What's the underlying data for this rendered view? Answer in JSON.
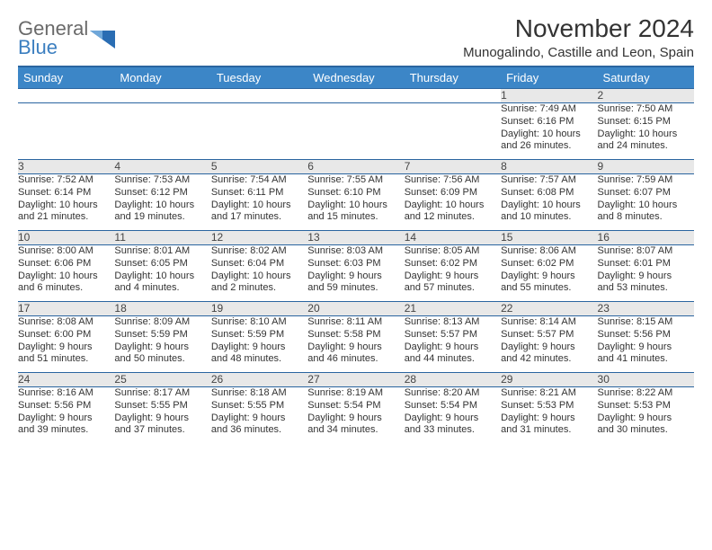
{
  "brand": {
    "word1": "General",
    "word2": "Blue",
    "triangle_color": "#2a6db3"
  },
  "header": {
    "title": "November 2024",
    "location": "Munogalindo, Castille and Leon, Spain"
  },
  "theme": {
    "header_bg": "#3c86c7",
    "header_border": "#2a65a0",
    "daynum_bg": "#e8e8e8",
    "row_rule": "#2a65a0"
  },
  "weekdays": [
    "Sunday",
    "Monday",
    "Tuesday",
    "Wednesday",
    "Thursday",
    "Friday",
    "Saturday"
  ],
  "weeks": [
    {
      "nums": [
        "",
        "",
        "",
        "",
        "",
        "1",
        "2"
      ],
      "cells": [
        null,
        null,
        null,
        null,
        null,
        {
          "sunrise": "Sunrise: 7:49 AM",
          "sunset": "Sunset: 6:16 PM",
          "day1": "Daylight: 10 hours",
          "day2": "and 26 minutes."
        },
        {
          "sunrise": "Sunrise: 7:50 AM",
          "sunset": "Sunset: 6:15 PM",
          "day1": "Daylight: 10 hours",
          "day2": "and 24 minutes."
        }
      ]
    },
    {
      "nums": [
        "3",
        "4",
        "5",
        "6",
        "7",
        "8",
        "9"
      ],
      "cells": [
        {
          "sunrise": "Sunrise: 7:52 AM",
          "sunset": "Sunset: 6:14 PM",
          "day1": "Daylight: 10 hours",
          "day2": "and 21 minutes."
        },
        {
          "sunrise": "Sunrise: 7:53 AM",
          "sunset": "Sunset: 6:12 PM",
          "day1": "Daylight: 10 hours",
          "day2": "and 19 minutes."
        },
        {
          "sunrise": "Sunrise: 7:54 AM",
          "sunset": "Sunset: 6:11 PM",
          "day1": "Daylight: 10 hours",
          "day2": "and 17 minutes."
        },
        {
          "sunrise": "Sunrise: 7:55 AM",
          "sunset": "Sunset: 6:10 PM",
          "day1": "Daylight: 10 hours",
          "day2": "and 15 minutes."
        },
        {
          "sunrise": "Sunrise: 7:56 AM",
          "sunset": "Sunset: 6:09 PM",
          "day1": "Daylight: 10 hours",
          "day2": "and 12 minutes."
        },
        {
          "sunrise": "Sunrise: 7:57 AM",
          "sunset": "Sunset: 6:08 PM",
          "day1": "Daylight: 10 hours",
          "day2": "and 10 minutes."
        },
        {
          "sunrise": "Sunrise: 7:59 AM",
          "sunset": "Sunset: 6:07 PM",
          "day1": "Daylight: 10 hours",
          "day2": "and 8 minutes."
        }
      ]
    },
    {
      "nums": [
        "10",
        "11",
        "12",
        "13",
        "14",
        "15",
        "16"
      ],
      "cells": [
        {
          "sunrise": "Sunrise: 8:00 AM",
          "sunset": "Sunset: 6:06 PM",
          "day1": "Daylight: 10 hours",
          "day2": "and 6 minutes."
        },
        {
          "sunrise": "Sunrise: 8:01 AM",
          "sunset": "Sunset: 6:05 PM",
          "day1": "Daylight: 10 hours",
          "day2": "and 4 minutes."
        },
        {
          "sunrise": "Sunrise: 8:02 AM",
          "sunset": "Sunset: 6:04 PM",
          "day1": "Daylight: 10 hours",
          "day2": "and 2 minutes."
        },
        {
          "sunrise": "Sunrise: 8:03 AM",
          "sunset": "Sunset: 6:03 PM",
          "day1": "Daylight: 9 hours",
          "day2": "and 59 minutes."
        },
        {
          "sunrise": "Sunrise: 8:05 AM",
          "sunset": "Sunset: 6:02 PM",
          "day1": "Daylight: 9 hours",
          "day2": "and 57 minutes."
        },
        {
          "sunrise": "Sunrise: 8:06 AM",
          "sunset": "Sunset: 6:02 PM",
          "day1": "Daylight: 9 hours",
          "day2": "and 55 minutes."
        },
        {
          "sunrise": "Sunrise: 8:07 AM",
          "sunset": "Sunset: 6:01 PM",
          "day1": "Daylight: 9 hours",
          "day2": "and 53 minutes."
        }
      ]
    },
    {
      "nums": [
        "17",
        "18",
        "19",
        "20",
        "21",
        "22",
        "23"
      ],
      "cells": [
        {
          "sunrise": "Sunrise: 8:08 AM",
          "sunset": "Sunset: 6:00 PM",
          "day1": "Daylight: 9 hours",
          "day2": "and 51 minutes."
        },
        {
          "sunrise": "Sunrise: 8:09 AM",
          "sunset": "Sunset: 5:59 PM",
          "day1": "Daylight: 9 hours",
          "day2": "and 50 minutes."
        },
        {
          "sunrise": "Sunrise: 8:10 AM",
          "sunset": "Sunset: 5:59 PM",
          "day1": "Daylight: 9 hours",
          "day2": "and 48 minutes."
        },
        {
          "sunrise": "Sunrise: 8:11 AM",
          "sunset": "Sunset: 5:58 PM",
          "day1": "Daylight: 9 hours",
          "day2": "and 46 minutes."
        },
        {
          "sunrise": "Sunrise: 8:13 AM",
          "sunset": "Sunset: 5:57 PM",
          "day1": "Daylight: 9 hours",
          "day2": "and 44 minutes."
        },
        {
          "sunrise": "Sunrise: 8:14 AM",
          "sunset": "Sunset: 5:57 PM",
          "day1": "Daylight: 9 hours",
          "day2": "and 42 minutes."
        },
        {
          "sunrise": "Sunrise: 8:15 AM",
          "sunset": "Sunset: 5:56 PM",
          "day1": "Daylight: 9 hours",
          "day2": "and 41 minutes."
        }
      ]
    },
    {
      "nums": [
        "24",
        "25",
        "26",
        "27",
        "28",
        "29",
        "30"
      ],
      "cells": [
        {
          "sunrise": "Sunrise: 8:16 AM",
          "sunset": "Sunset: 5:56 PM",
          "day1": "Daylight: 9 hours",
          "day2": "and 39 minutes."
        },
        {
          "sunrise": "Sunrise: 8:17 AM",
          "sunset": "Sunset: 5:55 PM",
          "day1": "Daylight: 9 hours",
          "day2": "and 37 minutes."
        },
        {
          "sunrise": "Sunrise: 8:18 AM",
          "sunset": "Sunset: 5:55 PM",
          "day1": "Daylight: 9 hours",
          "day2": "and 36 minutes."
        },
        {
          "sunrise": "Sunrise: 8:19 AM",
          "sunset": "Sunset: 5:54 PM",
          "day1": "Daylight: 9 hours",
          "day2": "and 34 minutes."
        },
        {
          "sunrise": "Sunrise: 8:20 AM",
          "sunset": "Sunset: 5:54 PM",
          "day1": "Daylight: 9 hours",
          "day2": "and 33 minutes."
        },
        {
          "sunrise": "Sunrise: 8:21 AM",
          "sunset": "Sunset: 5:53 PM",
          "day1": "Daylight: 9 hours",
          "day2": "and 31 minutes."
        },
        {
          "sunrise": "Sunrise: 8:22 AM",
          "sunset": "Sunset: 5:53 PM",
          "day1": "Daylight: 9 hours",
          "day2": "and 30 minutes."
        }
      ]
    }
  ]
}
